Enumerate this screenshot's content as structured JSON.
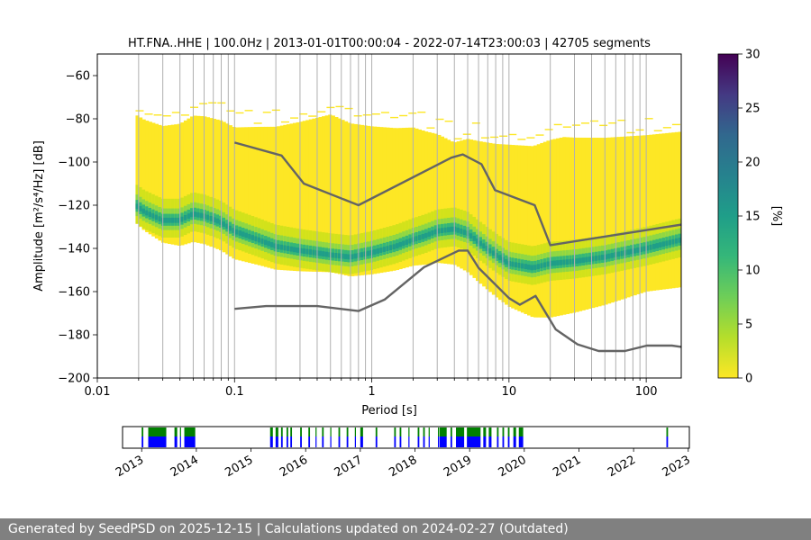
{
  "chart_data": [
    {
      "type": "heatmap",
      "title": "HT.FNA..HHE | 100.0Hz | 2013-01-01T00:00:04 - 2022-07-14T23:00:03 | 42705 segments",
      "xlabel": "Period [s]",
      "ylabel": "Amplitude [m²/s⁴/Hz] [dB]",
      "x_scale": "log",
      "xlim": [
        0.01,
        180
      ],
      "ylim": [
        -200,
        -50
      ],
      "x_ticks": [
        "0.01",
        "0.1",
        "1",
        "10",
        "100"
      ],
      "y_ticks": [
        "−200",
        "−180",
        "−160",
        "−140",
        "−120",
        "−100",
        "−80",
        "−60"
      ],
      "grid": "vertical",
      "colormap": "viridis",
      "colorbar": {
        "label": "[%]",
        "range": [
          0,
          30
        ],
        "ticks": [
          "0",
          "5",
          "10",
          "15",
          "20",
          "25",
          "30"
        ]
      },
      "period_range_with_data": [
        0.019,
        180
      ],
      "density_mode_db": [
        [
          0.019,
          -120
        ],
        [
          0.022,
          -123
        ],
        [
          0.03,
          -127
        ],
        [
          0.04,
          -127
        ],
        [
          0.05,
          -124
        ],
        [
          0.06,
          -125
        ],
        [
          0.08,
          -128
        ],
        [
          0.1,
          -132
        ],
        [
          0.15,
          -136
        ],
        [
          0.2,
          -139
        ],
        [
          0.3,
          -141
        ],
        [
          0.5,
          -143
        ],
        [
          0.7,
          -144
        ],
        [
          1.0,
          -142
        ],
        [
          1.5,
          -139
        ],
        [
          2.0,
          -136
        ],
        [
          2.5,
          -134
        ],
        [
          3.0,
          -132
        ],
        [
          4.0,
          -131
        ],
        [
          5.0,
          -133
        ],
        [
          6.0,
          -137
        ],
        [
          8.0,
          -143
        ],
        [
          10.0,
          -147
        ],
        [
          15.0,
          -149
        ],
        [
          20.0,
          -147
        ],
        [
          30.0,
          -146
        ],
        [
          50.0,
          -144
        ],
        [
          100.0,
          -140
        ],
        [
          180.0,
          -136
        ]
      ],
      "series": [
        {
          "values": [
            [
              0.1,
              -91
            ],
            [
              0.22,
              -97
            ],
            [
              0.32,
              -110
            ],
            [
              0.8,
              -120
            ],
            [
              3.8,
              -98
            ],
            [
              4.6,
              -96.5
            ],
            [
              6.3,
              -101
            ],
            [
              7.9,
              -113
            ],
            [
              15.4,
              -120
            ],
            [
              20,
              -138.5
            ],
            [
              180,
              -129
            ]
          ]
        },
        {
          "values": [
            [
              0.1,
              -168
            ],
            [
              0.17,
              -166.7
            ],
            [
              0.4,
              -166.7
            ],
            [
              0.8,
              -169
            ],
            [
              1.24,
              -163.7
            ],
            [
              2.4,
              -148.7
            ],
            [
              4.3,
              -141
            ],
            [
              5.0,
              -141
            ],
            [
              6.0,
              -149
            ],
            [
              10,
              -163
            ],
            [
              12,
              -166.1
            ],
            [
              15.6,
              -162
            ],
            [
              21.9,
              -177.5
            ],
            [
              31.6,
              -184.4
            ],
            [
              45,
              -187.5
            ],
            [
              70,
              -187.5
            ],
            [
              101,
              -185
            ],
            [
              154,
              -185
            ],
            [
              180,
              -185.6
            ]
          ]
        }
      ]
    },
    {
      "type": "bar",
      "x_ticks": [
        "2013",
        "2014",
        "2015",
        "2016",
        "2017",
        "2018",
        "2019",
        "2020",
        "2021",
        "2022",
        "2023"
      ],
      "colors": {
        "top": "#008000",
        "bottom": "#0000ff"
      },
      "data_segments": [
        [
          2013.0,
          2013.03
        ],
        [
          2013.12,
          2013.45
        ],
        [
          2013.6,
          2013.65
        ],
        [
          2013.7,
          2013.72
        ],
        [
          2013.78,
          2013.98
        ],
        [
          2015.35,
          2015.4
        ],
        [
          2015.45,
          2015.5
        ],
        [
          2015.55,
          2015.58
        ],
        [
          2015.65,
          2015.68
        ],
        [
          2015.72,
          2015.75
        ],
        [
          2015.9,
          2015.93
        ],
        [
          2016.05,
          2016.08
        ],
        [
          2016.18,
          2016.2
        ],
        [
          2016.3,
          2016.33
        ],
        [
          2016.45,
          2016.47
        ],
        [
          2016.6,
          2016.63
        ],
        [
          2016.75,
          2016.78
        ],
        [
          2016.9,
          2016.92
        ],
        [
          2017.0,
          2017.05
        ],
        [
          2017.28,
          2017.31
        ],
        [
          2017.62,
          2017.65
        ],
        [
          2017.72,
          2017.75
        ],
        [
          2017.88,
          2017.9
        ],
        [
          2018.05,
          2018.08
        ],
        [
          2018.15,
          2018.18
        ],
        [
          2018.25,
          2018.27
        ],
        [
          2018.42,
          2018.44
        ],
        [
          2018.45,
          2018.58
        ],
        [
          2018.65,
          2018.68
        ],
        [
          2018.75,
          2018.9
        ],
        [
          2018.95,
          2019.2
        ],
        [
          2019.25,
          2019.3
        ],
        [
          2019.35,
          2019.4
        ],
        [
          2019.5,
          2019.53
        ],
        [
          2019.6,
          2019.63
        ],
        [
          2019.7,
          2019.73
        ],
        [
          2019.8,
          2019.85
        ],
        [
          2019.9,
          2019.98
        ],
        [
          2022.6,
          2022.63
        ]
      ]
    }
  ],
  "footer": "Generated by SeedPSD on 2025-12-15 | Calculations updated on 2024-02-27 (Outdated)"
}
